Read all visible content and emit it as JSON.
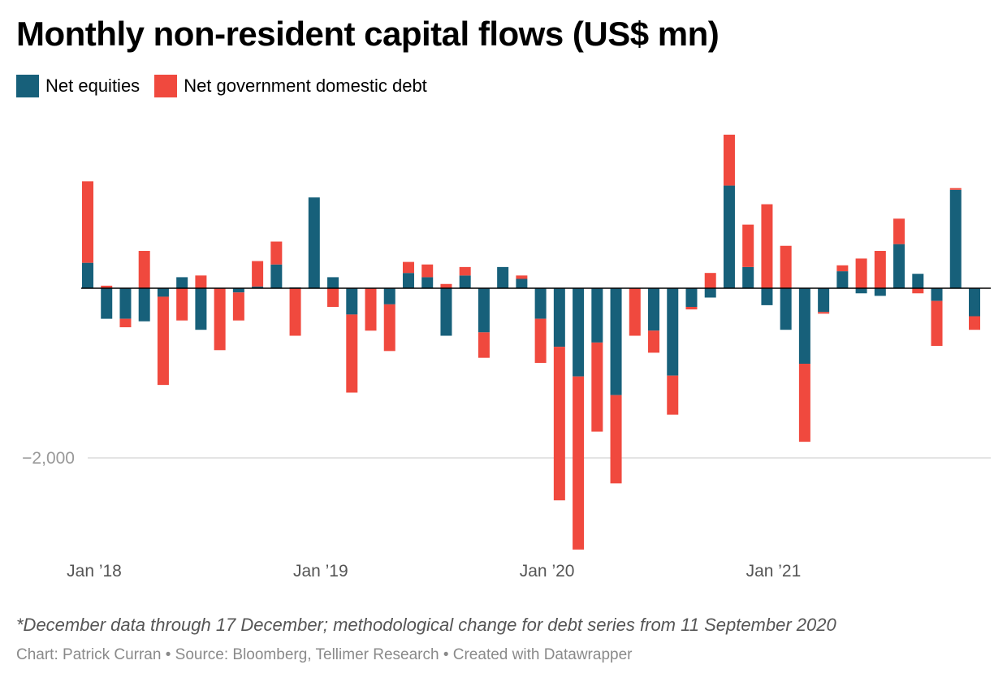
{
  "chart_data": {
    "type": "bar",
    "stacked": true,
    "title": "Monthly non-resident capital flows (US$ mn)",
    "x": [
      "2018-01",
      "2018-02",
      "2018-03",
      "2018-04",
      "2018-05",
      "2018-06",
      "2018-07",
      "2018-08",
      "2018-09",
      "2018-10",
      "2018-11",
      "2018-12",
      "2019-01",
      "2019-02",
      "2019-03",
      "2019-04",
      "2019-05",
      "2019-06",
      "2019-07",
      "2019-08",
      "2019-09",
      "2019-10",
      "2019-11",
      "2019-12",
      "2020-01",
      "2020-02",
      "2020-03",
      "2020-04",
      "2020-05",
      "2020-06",
      "2020-07",
      "2020-08",
      "2020-09",
      "2020-10",
      "2020-11",
      "2020-12",
      "2021-01",
      "2021-02",
      "2021-03",
      "2021-04",
      "2021-05",
      "2021-06",
      "2021-07",
      "2021-08",
      "2021-09",
      "2021-10",
      "2021-11",
      "2021-12"
    ],
    "series": [
      {
        "name": "Net equities",
        "color": "#17607a",
        "values": [
          300,
          -360,
          -360,
          -390,
          -100,
          130,
          -490,
          0,
          -50,
          20,
          280,
          10,
          1070,
          130,
          -310,
          0,
          -190,
          180,
          130,
          -560,
          150,
          -520,
          250,
          110,
          -360,
          -690,
          -1040,
          -640,
          -1260,
          0,
          -500,
          -1030,
          -220,
          -110,
          1210,
          250,
          -200,
          -490,
          -890,
          -280,
          200,
          -60,
          -90,
          520,
          170,
          -150,
          1160,
          -330
        ]
      },
      {
        "name": "Net government domestic debt",
        "color": "#f0493e",
        "values": [
          960,
          30,
          -100,
          440,
          -1040,
          -380,
          150,
          -730,
          -330,
          300,
          270,
          -560,
          0,
          -220,
          -920,
          -500,
          -550,
          130,
          150,
          50,
          100,
          -300,
          0,
          40,
          -520,
          -1810,
          -2040,
          -1050,
          -1040,
          -560,
          -260,
          -460,
          -30,
          180,
          600,
          500,
          990,
          500,
          -920,
          -20,
          70,
          350,
          440,
          300,
          -60,
          -530,
          20,
          -160
        ]
      }
    ],
    "y_tick_labels": [
      "−2,000"
    ],
    "x_tick_labels": [
      "Jan ’18",
      "Jan ’19",
      "Jan ’20",
      "Jan ’21"
    ],
    "ylim": [
      -3100,
      1900
    ],
    "grid": "horizontal",
    "legend_position": "top-left"
  },
  "note": "*December data through 17 December; methodological change for debt series from 11 September 2020",
  "credit": "Chart: Patrick Curran • Source: Bloomberg, Tellimer Research • Created with Datawrapper"
}
